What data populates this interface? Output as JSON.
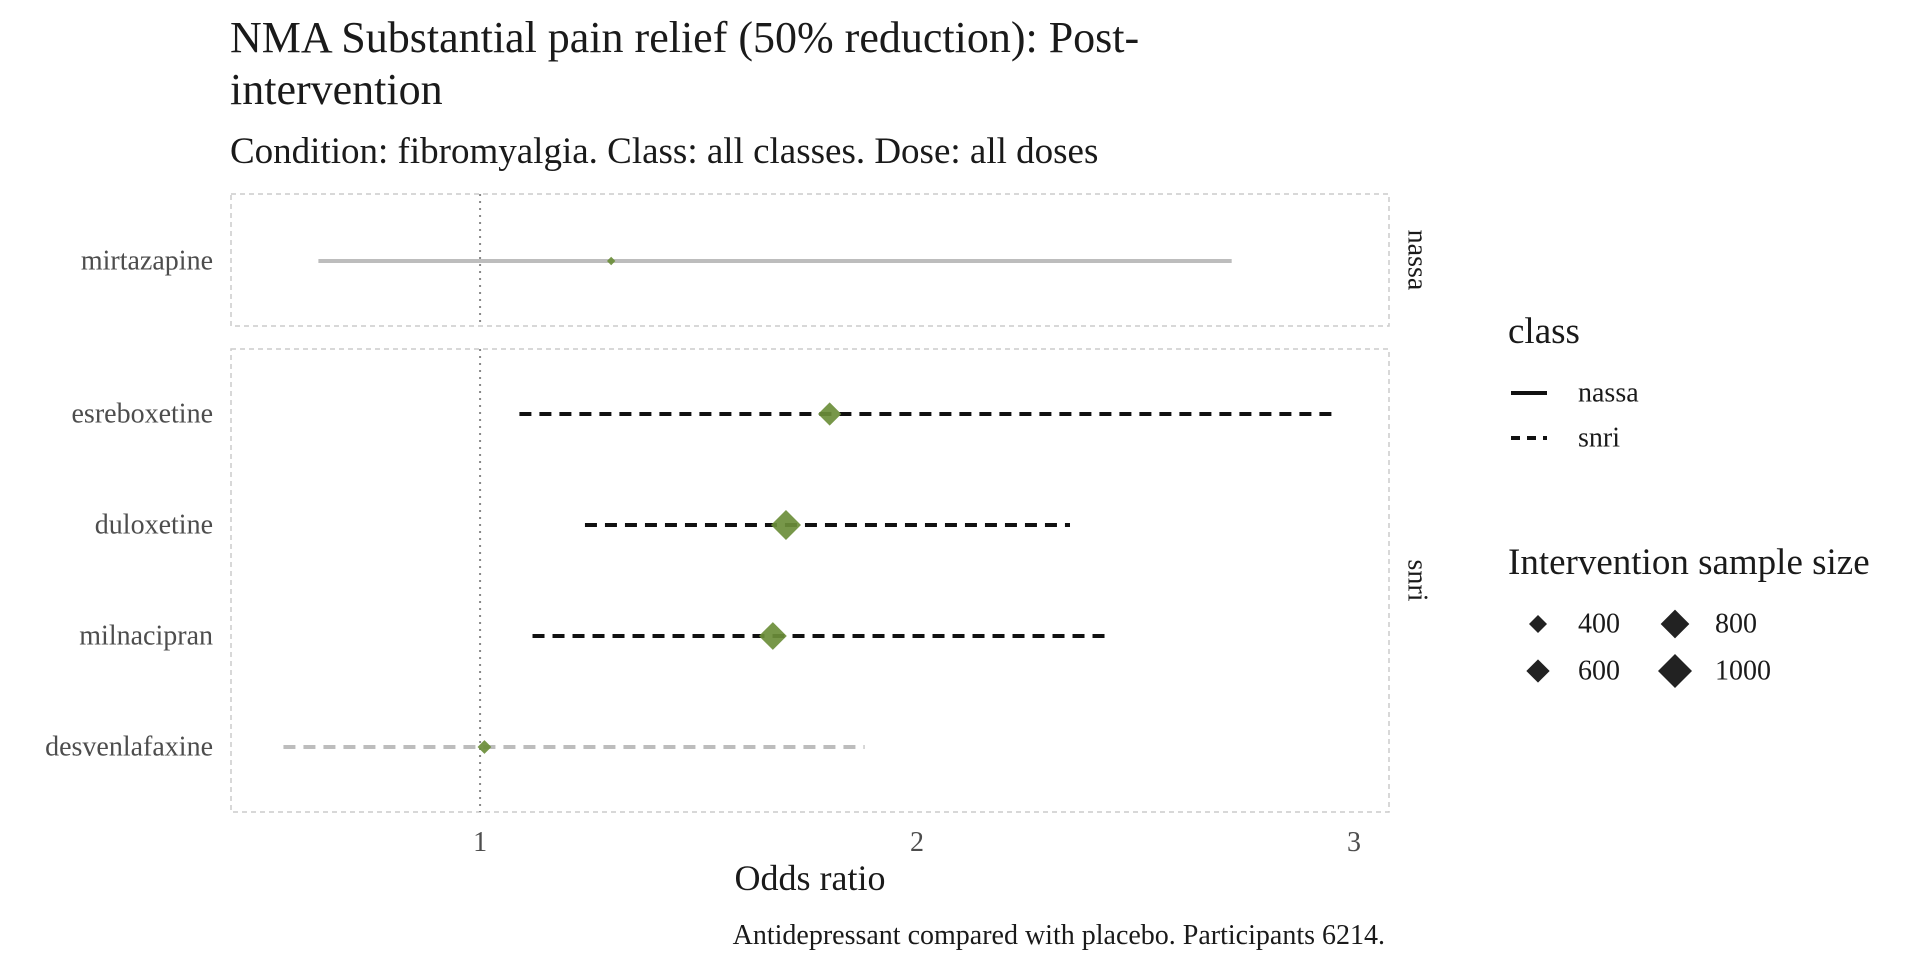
{
  "chart_data": {
    "type": "forest",
    "title_line1": "NMA Substantial pain relief (50% reduction): Post-",
    "title_line2": "intervention",
    "subtitle": "Condition: fibromyalgia. Class: all classes. Dose: all doses",
    "xlabel": "Odds ratio",
    "caption": "Antidepressant compared with placebo. Participants 6214.",
    "xlim": [
      0.43,
      3.08
    ],
    "xticks": [
      1,
      2,
      3
    ],
    "xtick_labels": [
      "1",
      "2",
      "3"
    ],
    "reference_line": 1,
    "panels": [
      {
        "strip": "nassa",
        "rows": [
          {
            "label": "mirtazapine",
            "or": 1.3,
            "lo": 0.63,
            "hi": 2.72,
            "n": 200,
            "linetype": "solid",
            "significant": false
          }
        ]
      },
      {
        "strip": "snri",
        "rows": [
          {
            "label": "esreboxetine",
            "or": 1.8,
            "lo": 1.09,
            "hi": 2.96,
            "n": 750,
            "linetype": "dashed",
            "significant": true
          },
          {
            "label": "duloxetine",
            "or": 1.7,
            "lo": 1.24,
            "hi": 2.35,
            "n": 1000,
            "linetype": "dashed",
            "significant": true
          },
          {
            "label": "milnacipran",
            "or": 1.67,
            "lo": 1.12,
            "hi": 2.44,
            "n": 920,
            "linetype": "dashed",
            "significant": true
          },
          {
            "label": "desvenlafaxine",
            "or": 1.01,
            "lo": 0.55,
            "hi": 1.88,
            "n": 400,
            "linetype": "dashed",
            "significant": false
          }
        ]
      }
    ],
    "legend_class": {
      "title": "class",
      "items": [
        {
          "label": "nassa",
          "linetype": "solid"
        },
        {
          "label": "snri",
          "linetype": "dashed"
        }
      ]
    },
    "legend_size": {
      "title": "Intervention sample size",
      "items": [
        {
          "label": "400",
          "n": 400
        },
        {
          "label": "600",
          "n": 600
        },
        {
          "label": "800",
          "n": 800
        },
        {
          "label": "1000",
          "n": 1000
        }
      ]
    },
    "colors": {
      "point": "#6b8e3a",
      "significant_line": "#111111",
      "nonsignificant_line": "#bdbdbd",
      "reference_line": "#888888",
      "panel_border": "#cccccc",
      "legend_marker": "#222222"
    }
  }
}
